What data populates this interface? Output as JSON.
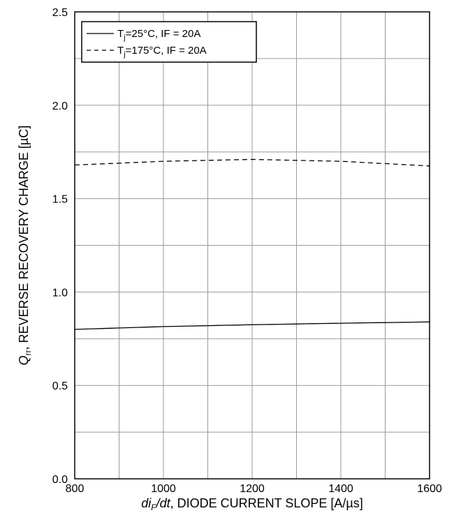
{
  "chart_data": {
    "type": "line",
    "xlabel": {
      "italic_symbol": "di",
      "subscript": "F",
      "italic_suffix": "/dt",
      "rest": ", DIODE CURRENT SLOPE [A/µs]"
    },
    "ylabel": {
      "italic_symbol": "Q",
      "subscript": "rr",
      "rest": ", REVERSE RECOVERY CHARGE [µC]"
    },
    "xlim": [
      800,
      1600
    ],
    "ylim": [
      0.0,
      2.5
    ],
    "x_ticks": [
      800,
      1000,
      1200,
      1400,
      1600
    ],
    "x_tick_labels": [
      "800",
      "1000",
      "1200",
      "1400",
      "1600"
    ],
    "y_ticks": [
      0.0,
      0.5,
      1.0,
      1.5,
      2.0,
      2.5
    ],
    "y_tick_labels": [
      "0.0",
      "0.5",
      "1.0",
      "1.5",
      "2.0",
      "2.5"
    ],
    "grid": true,
    "legend_position": "top-left",
    "series": [
      {
        "legend": {
          "prefix": "T",
          "sub": "j",
          "suffix": "=25°C, IF = 20A"
        },
        "style": "solid",
        "color": "#000000",
        "x": [
          800,
          1000,
          1200,
          1400,
          1600
        ],
        "y": [
          0.8,
          0.815,
          0.825,
          0.833,
          0.84
        ]
      },
      {
        "legend": {
          "prefix": "T",
          "sub": "j",
          "suffix": "=175°C, IF = 20A"
        },
        "style": "dashed",
        "color": "#000000",
        "x": [
          800,
          1000,
          1200,
          1400,
          1600
        ],
        "y": [
          1.68,
          1.7,
          1.71,
          1.7,
          1.675
        ]
      }
    ]
  }
}
